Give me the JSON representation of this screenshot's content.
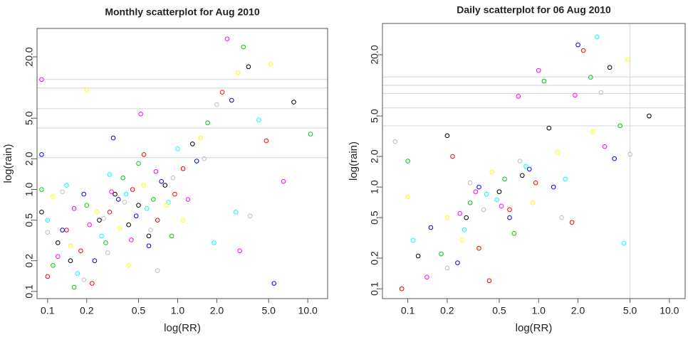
{
  "chart_data": [
    {
      "type": "scatter",
      "title": "Monthly scatterplot for Aug 2010",
      "x_label": "log(RR)",
      "y_label": "log(rain)",
      "xscale": "log",
      "yscale": "log",
      "xlim": [
        0.083,
        14.2
      ],
      "ylim": [
        0.085,
        38
      ],
      "xticks": [
        0.1,
        0.2,
        0.5,
        {
          "value": 1,
          "label": "1.0"
        },
        {
          "value": 2,
          "label": "2.0"
        },
        {
          "value": 5,
          "label": "5.0"
        },
        {
          "value": 10,
          "label": "10.0"
        }
      ],
      "yticks": [
        0.1,
        0.2,
        0.5,
        {
          "value": 1,
          "label": "1.0"
        },
        {
          "value": 2,
          "label": "2.0"
        },
        {
          "value": 5,
          "label": "5.0"
        },
        {
          "value": 20,
          "label": "20.0"
        }
      ],
      "hlines": [
        12,
        9.9,
        6.2,
        4.0,
        2.05
      ],
      "vlines": [],
      "series": [
        {
          "color": "#000000",
          "x": [
            0.12,
            0.25,
            0.33,
            0.5,
            0.8,
            0.15,
            0.42,
            1.3,
            3.5,
            0.09,
            0.6,
            7.8
          ],
          "y": [
            0.3,
            0.5,
            0.9,
            0.7,
            1.1,
            0.2,
            0.45,
            2.8,
            16,
            0.6,
            0.35,
            7.2
          ]
        },
        {
          "color": "#ff0000",
          "x": [
            0.1,
            0.18,
            0.3,
            0.45,
            0.7,
            1.1,
            2.2,
            0.22,
            0.55,
            4.8,
            0.14,
            0.95
          ],
          "y": [
            0.14,
            0.25,
            0.6,
            1.0,
            0.5,
            1.6,
            9,
            0.12,
            2.2,
            3,
            0.4,
            0.9
          ]
        },
        {
          "color": "#00cd00",
          "x": [
            0.11,
            0.2,
            0.28,
            0.38,
            0.65,
            0.9,
            1.7,
            3.2,
            0.16,
            0.5,
            10.5,
            0.09
          ],
          "y": [
            0.18,
            0.7,
            0.3,
            1.3,
            0.8,
            0.35,
            4.5,
            25,
            0.11,
            1.8,
            3.5,
            1.0
          ]
        },
        {
          "color": "#0000ff",
          "x": [
            0.13,
            0.23,
            0.35,
            0.48,
            0.75,
            1.4,
            2.6,
            0.19,
            0.6,
            5.5,
            0.32,
            0.09
          ],
          "y": [
            0.4,
            0.2,
            0.8,
            0.55,
            1.2,
            1.9,
            7.5,
            0.9,
            0.28,
            0.12,
            3.2,
            2.2
          ]
        },
        {
          "color": "#00ffff",
          "x": [
            0.1,
            0.17,
            0.26,
            0.4,
            0.58,
            1.0,
            1.9,
            0.3,
            0.85,
            4.2,
            0.14,
            2.8
          ],
          "y": [
            0.5,
            0.15,
            0.35,
            0.9,
            0.65,
            2.5,
            0.3,
            1.4,
            0.75,
            4.8,
            1.1,
            0.6
          ]
        },
        {
          "color": "#ff00ff",
          "x": [
            0.12,
            0.21,
            0.31,
            0.44,
            0.68,
            1.2,
            2.4,
            0.16,
            0.52,
            3.0,
            6.5,
            0.09
          ],
          "y": [
            0.22,
            0.45,
            0.95,
            0.32,
            1.5,
            0.8,
            30,
            0.65,
            5.5,
            0.25,
            1.2,
            12
          ]
        },
        {
          "color": "#ffff00",
          "x": [
            0.15,
            0.24,
            0.36,
            0.55,
            0.82,
            1.5,
            0.2,
            0.42,
            2.9,
            0.11,
            5.2,
            1.1
          ],
          "y": [
            0.28,
            0.6,
            0.42,
            1.1,
            0.7,
            3.2,
            9.5,
            0.18,
            14,
            0.85,
            17,
            0.5
          ]
        },
        {
          "color": "#bebebe",
          "x": [
            0.1,
            0.19,
            0.27,
            0.39,
            0.62,
            0.92,
            1.6,
            0.29,
            0.7,
            3.6,
            0.13,
            2.0
          ],
          "y": [
            0.38,
            0.13,
            0.52,
            0.75,
            0.4,
            1.3,
            2.0,
            0.24,
            0.16,
            0.55,
            0.95,
            6.8
          ]
        }
      ]
    },
    {
      "type": "scatter",
      "title": "Daily scatterplot for 06 Aug 2010",
      "x_label": "log(RR)",
      "y_label": "log(rain)",
      "xscale": "log",
      "yscale": "log",
      "xlim": [
        0.064,
        13.2
      ],
      "ylim": [
        0.08,
        40.6
      ],
      "xticks": [
        0.1,
        0.2,
        0.5,
        {
          "value": 1,
          "label": "1.0"
        },
        {
          "value": 2,
          "label": "2.0"
        },
        {
          "value": 5,
          "label": "5.0"
        },
        {
          "value": 10,
          "label": "10.0"
        }
      ],
      "yticks": [
        0.1,
        0.2,
        0.5,
        {
          "value": 1,
          "label": "1.0"
        },
        {
          "value": 2,
          "label": "2.0"
        },
        {
          "value": 5,
          "label": "5.0"
        },
        {
          "value": 20,
          "label": "20.0"
        }
      ],
      "hlines": [
        12.1,
        10,
        8.3,
        6,
        4
      ],
      "vlines": [
        5
      ],
      "series": [
        {
          "color": "#000000",
          "x": [
            0.12,
            0.28,
            0.5,
            0.75,
            1.2,
            3.5,
            0.2,
            7.0
          ],
          "y": [
            0.21,
            0.5,
            0.9,
            1.3,
            3.8,
            15,
            3.2,
            5.0
          ]
        },
        {
          "color": "#ff0000",
          "x": [
            0.09,
            0.22,
            0.42,
            0.95,
            2.2,
            0.6,
            1.8,
            0.35
          ],
          "y": [
            0.1,
            2.0,
            0.12,
            1.1,
            22,
            0.6,
            0.45,
            0.25
          ]
        },
        {
          "color": "#00cd00",
          "x": [
            0.1,
            0.3,
            0.55,
            1.1,
            2.5,
            4.2,
            0.65,
            0.18
          ],
          "y": [
            1.8,
            0.7,
            1.2,
            11,
            12,
            4.0,
            0.35,
            0.22
          ]
        },
        {
          "color": "#0000ff",
          "x": [
            0.15,
            0.35,
            0.6,
            1.3,
            2.0,
            3.8,
            0.85,
            0.24
          ],
          "y": [
            0.4,
            1.0,
            0.5,
            1.0,
            25,
            1.9,
            1.5,
            0.18
          ]
        },
        {
          "color": "#00ffff",
          "x": [
            0.11,
            0.27,
            0.48,
            0.8,
            1.6,
            2.8,
            0.4,
            4.5
          ],
          "y": [
            0.3,
            0.38,
            0.75,
            1.6,
            1.2,
            30,
            0.85,
            0.28
          ]
        },
        {
          "color": "#ff00ff",
          "x": [
            0.14,
            0.33,
            0.52,
            1.0,
            1.9,
            3.2,
            0.25,
            0.7
          ],
          "y": [
            0.13,
            0.9,
            0.65,
            14,
            8,
            2.5,
            0.55,
            7.8
          ]
        },
        {
          "color": "#ffff00",
          "x": [
            0.1,
            0.26,
            0.44,
            0.9,
            1.4,
            4.8,
            0.2,
            2.6
          ],
          "y": [
            0.8,
            0.3,
            1.4,
            0.7,
            2.2,
            18,
            0.5,
            3.5
          ]
        },
        {
          "color": "#bebebe",
          "x": [
            0.08,
            0.2,
            0.38,
            0.72,
            1.5,
            5.0,
            0.3,
            3.0
          ],
          "y": [
            2.8,
            0.16,
            0.6,
            1.8,
            0.5,
            2.1,
            1.1,
            8.5
          ]
        }
      ]
    }
  ]
}
